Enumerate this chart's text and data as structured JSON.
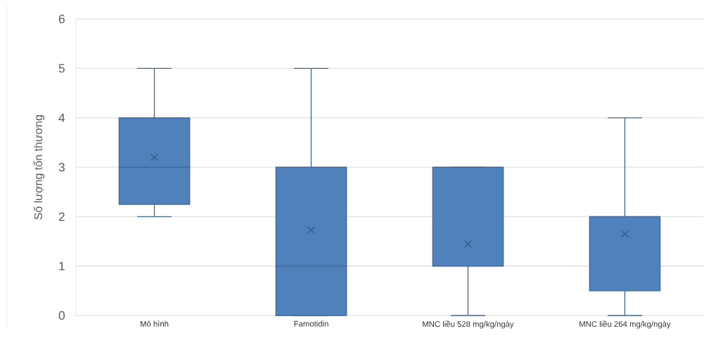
{
  "chart_data": {
    "type": "box",
    "ylabel": "Số lượng tổn thương",
    "categories": [
      "Mô hình",
      "Famotidin",
      "MNC liều 528 mg/kg/ngày",
      "MNC liều 264 mg/kg/ngày"
    ],
    "boxes": [
      {
        "low": 2,
        "q1": 2.25,
        "median": 3,
        "q3": 4,
        "high": 5,
        "mean": 3.2
      },
      {
        "low": 0,
        "q1": 0,
        "median": 1,
        "q3": 3,
        "high": 5,
        "mean": 1.73
      },
      {
        "low": 0,
        "q1": 1,
        "median": 1,
        "q3": 3,
        "high": 3,
        "mean": 1.45
      },
      {
        "low": 0,
        "q1": 0.5,
        "median": 2,
        "q3": 2,
        "high": 4,
        "mean": 1.65
      }
    ],
    "color": "#4f81bd",
    "ylim": [
      0,
      6
    ],
    "yticks": [
      0,
      1,
      2,
      3,
      4,
      5,
      6
    ],
    "grid": "y"
  }
}
